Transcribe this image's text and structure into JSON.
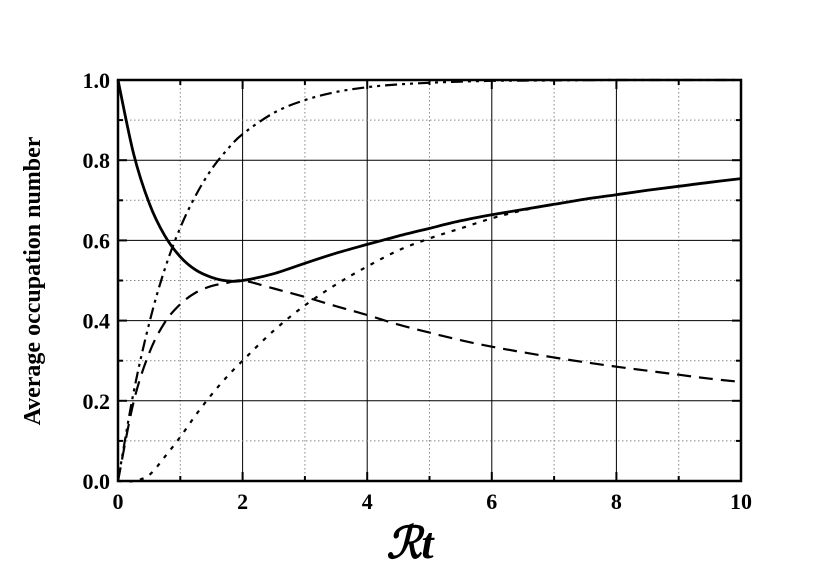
{
  "chart_data": {
    "type": "line",
    "xlabel": "ℛt",
    "ylabel": "Average occupation number",
    "xlim": [
      0,
      10
    ],
    "ylim": [
      0,
      1.0
    ],
    "xticks": [
      "0",
      "2",
      "4",
      "6",
      "8",
      "10"
    ],
    "yticks": [
      "0.0",
      "0.2",
      "0.4",
      "0.6",
      "0.8",
      "1.0"
    ],
    "grid": true,
    "series": [
      {
        "style": "solid",
        "x": [
          0,
          0.25,
          0.5,
          0.75,
          1.0,
          1.25,
          1.5,
          1.75,
          2.0,
          2.5,
          3.0,
          3.5,
          4.0,
          4.5,
          5.0,
          5.5,
          6.0,
          6.5,
          7.0,
          7.5,
          8.0,
          8.5,
          9.0,
          9.5,
          10.0
        ],
        "values": [
          1.0,
          0.816,
          0.693,
          0.612,
          0.559,
          0.526,
          0.508,
          0.499,
          0.5,
          0.517,
          0.543,
          0.568,
          0.59,
          0.611,
          0.63,
          0.649,
          0.664,
          0.677,
          0.69,
          0.703,
          0.714,
          0.725,
          0.735,
          0.745,
          0.754
        ]
      },
      {
        "style": "dashed",
        "x": [
          0,
          0.25,
          0.5,
          0.75,
          1.0,
          1.25,
          1.5,
          1.75,
          2.0,
          2.5,
          3.0,
          3.5,
          4.0,
          4.5,
          5.0,
          5.5,
          6.0,
          6.5,
          7.0,
          7.5,
          8.0,
          8.5,
          9.0,
          9.5,
          10.0
        ],
        "values": [
          0.0,
          0.197,
          0.319,
          0.395,
          0.441,
          0.47,
          0.486,
          0.494,
          0.5,
          0.48,
          0.459,
          0.436,
          0.414,
          0.39,
          0.37,
          0.351,
          0.335,
          0.321,
          0.308,
          0.296,
          0.285,
          0.275,
          0.265,
          0.255,
          0.247
        ]
      },
      {
        "style": "dotted",
        "x": [
          0,
          0.25,
          0.5,
          0.75,
          1.0,
          1.25,
          1.5,
          1.75,
          2.0,
          2.5,
          3.0,
          3.5,
          4.0,
          4.5,
          5.0,
          5.5,
          6.0,
          6.5,
          7.0,
          7.5,
          8.0,
          8.5,
          9.0,
          9.5,
          10.0
        ],
        "values": [
          0.0,
          0.0,
          0.015,
          0.06,
          0.11,
          0.165,
          0.215,
          0.26,
          0.3,
          0.375,
          0.438,
          0.49,
          0.535,
          0.575,
          0.605,
          0.63,
          0.655,
          0.675,
          0.69,
          0.703,
          0.714,
          0.725,
          0.735,
          0.745,
          0.754
        ]
      },
      {
        "style": "dash-dot-dot",
        "x": [
          0,
          0.25,
          0.5,
          0.75,
          1.0,
          1.25,
          1.5,
          1.75,
          2.0,
          2.5,
          3.0,
          3.5,
          4.0,
          4.5,
          5.0,
          5.5,
          6.0,
          6.5,
          7.0,
          7.5,
          8.0,
          8.5,
          9.0,
          9.5,
          10.0
        ],
        "values": [
          0.0,
          0.221,
          0.393,
          0.528,
          0.632,
          0.713,
          0.777,
          0.826,
          0.865,
          0.918,
          0.95,
          0.97,
          0.982,
          0.989,
          0.993,
          0.996,
          0.998,
          0.9985,
          0.999,
          0.9995,
          1.0,
          1.0,
          1.0,
          1.0,
          1.0
        ]
      }
    ]
  }
}
